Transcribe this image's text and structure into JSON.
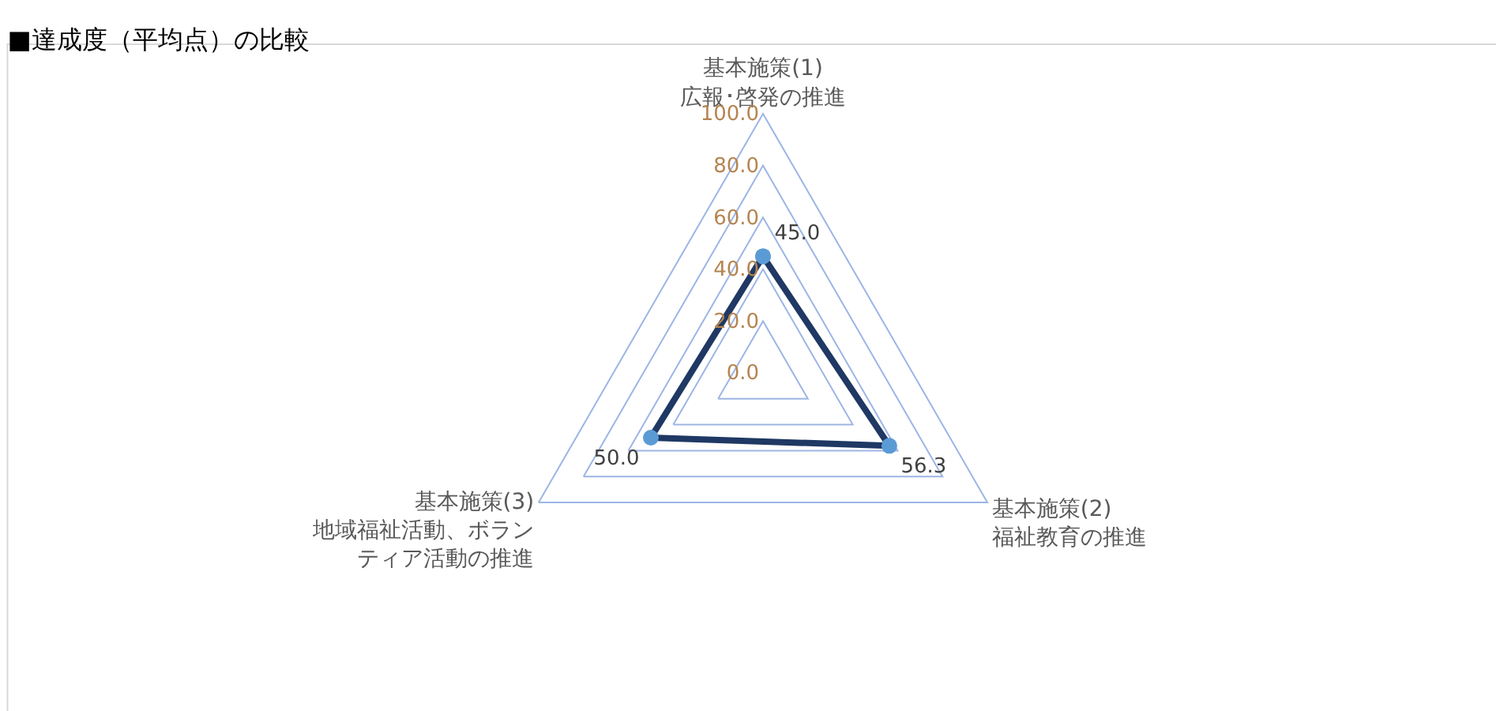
{
  "chart_data": {
    "type": "radar",
    "title": "■達成度（平均点）の比較",
    "categories": [
      "基本施策(1)\n広報･啓発の推進",
      "基本施策(2)\n福祉教育の推進",
      "基本施策(3)\n地域福祉活動、ボランティア活動の推進"
    ],
    "series": [
      {
        "color": "#1f3864",
        "colors": [
          "#5b9bd5",
          "#5b9bd5",
          "#5b9bd5"
        ],
        "values": [
          45.0,
          56.3,
          50.0
        ],
        "value_labels": [
          "45.0",
          "56.3",
          "50.0"
        ]
      }
    ],
    "ylim": [
      0,
      100
    ],
    "yticks": [
      {
        "value": 0,
        "label": "0.0"
      },
      {
        "value": 20,
        "label": "20.0"
      },
      {
        "value": 40,
        "label": "40.0"
      },
      {
        "value": 60,
        "label": "60.0"
      },
      {
        "value": 80,
        "label": "80.0"
      },
      {
        "value": 100,
        "label": "100.0"
      }
    ],
    "grid": true,
    "marker": "circle",
    "line_style": "solid"
  }
}
